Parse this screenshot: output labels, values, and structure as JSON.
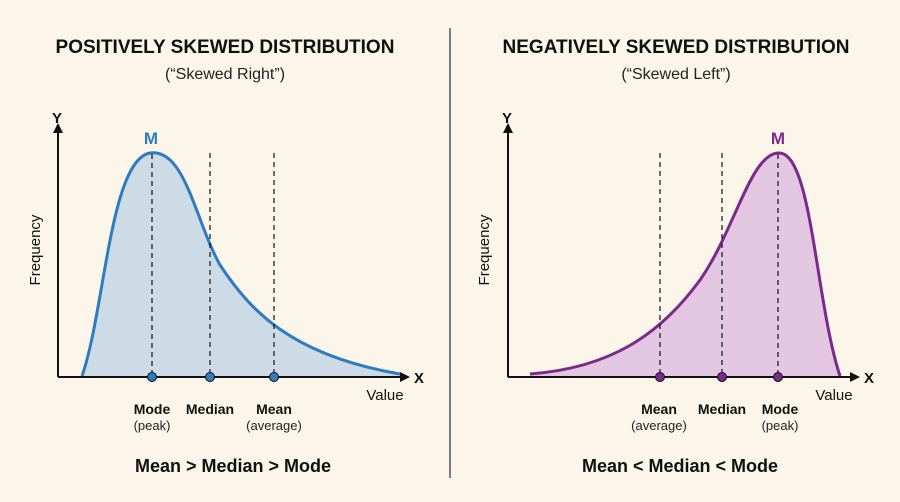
{
  "colors": {
    "background": "#fbf6e9",
    "positive_line": "#2f7bbf",
    "positive_fill": "#cddbe6",
    "negative_line": "#7a2a8a",
    "negative_fill": "#e3c6e2",
    "axis": "#111111",
    "divider": "#555555"
  },
  "panels": [
    {
      "title": "POSITIVELY SKEWED DISTRIBUTION",
      "subtitle": "(“Skewed Right”)",
      "y_axis": "Y",
      "x_axis": "X",
      "y_label": "Frequency",
      "x_label": "Value",
      "peak_label": "M",
      "markers": [
        {
          "label": "Mode",
          "note": "(peak)"
        },
        {
          "label": "Median",
          "note": ""
        },
        {
          "label": "Mean",
          "note": "(average)"
        }
      ],
      "relation": "Mean > Median > Mode"
    },
    {
      "title": "NEGATIVELY SKEWED DISTRIBUTION",
      "subtitle": "(“Skewed Left”)",
      "y_axis": "Y",
      "x_axis": "X",
      "y_label": "Frequency",
      "x_label": "Value",
      "peak_label": "M",
      "markers": [
        {
          "label": "Mean",
          "note": "(average)"
        },
        {
          "label": "Median",
          "note": ""
        },
        {
          "label": "Mode",
          "note": "(peak)"
        }
      ],
      "relation": "Mean < Median < Mode"
    }
  ]
}
